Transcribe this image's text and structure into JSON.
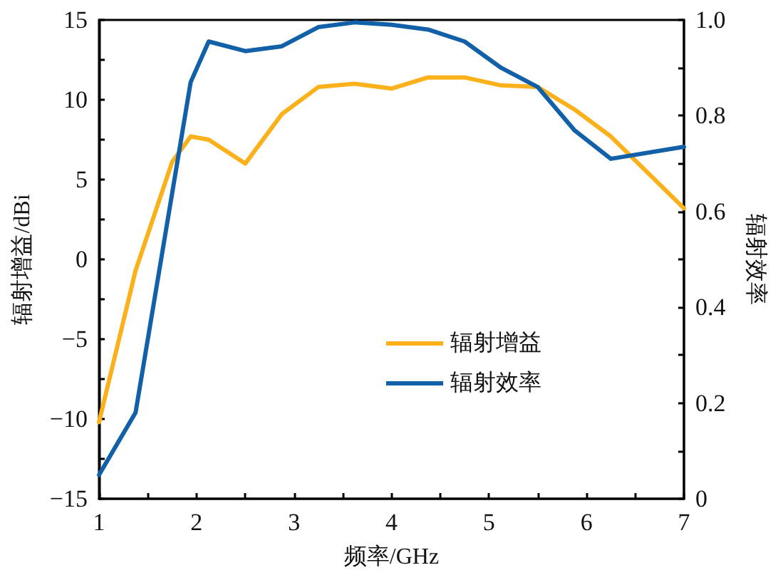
{
  "chart_data": {
    "type": "line",
    "xlabel": "频率/GHz",
    "ylabel": "辐射增益/dBi",
    "y2label": "辐射效率",
    "xlim": [
      1,
      7
    ],
    "xticks": [
      1,
      {
        "value": 1.5,
        "label": null
      },
      2,
      {
        "value": 2.5,
        "label": null
      },
      3,
      {
        "value": 3.5,
        "label": null
      },
      4,
      {
        "value": 4.5,
        "label": null
      },
      5,
      {
        "value": 5.5,
        "label": null
      },
      6,
      {
        "value": 6.5,
        "label": null
      },
      7
    ],
    "ylim": [
      -15,
      15
    ],
    "yticks": [
      {
        "value": -15,
        "label": "−15"
      },
      {
        "value": -12.5,
        "label": null
      },
      {
        "value": -10,
        "label": "−10"
      },
      {
        "value": -7.5,
        "label": null
      },
      {
        "value": -5,
        "label": "−5"
      },
      {
        "value": -2.5,
        "label": null
      },
      0,
      {
        "value": 2.5,
        "label": null
      },
      5,
      {
        "value": 7.5,
        "label": null
      },
      10,
      {
        "value": 12.5,
        "label": null
      },
      15
    ],
    "y2lim": [
      0,
      1
    ],
    "y2ticks": [
      0,
      {
        "value": 0.1,
        "label": null
      },
      0.2,
      {
        "value": 0.3,
        "label": null
      },
      0.4,
      {
        "value": 0.5,
        "label": null
      },
      0.6,
      {
        "value": 0.7,
        "label": null
      },
      0.8,
      {
        "value": 0.9,
        "label": null
      },
      {
        "value": 1,
        "label": "1.0"
      }
    ],
    "series": [
      {
        "name": "辐射增益",
        "color": "#fbb11b",
        "x": [
          1,
          1.375,
          1.75,
          1.94,
          2.125,
          2.5,
          2.875,
          3.25,
          3.625,
          4,
          4.375,
          4.75,
          5.125,
          5.5,
          5.875,
          6.25,
          7
        ],
        "values": [
          -10.2,
          -0.7,
          6.1,
          7.7,
          7.5,
          6.0,
          9.1,
          10.8,
          11.0,
          10.7,
          11.4,
          11.4,
          10.9,
          10.8,
          9.4,
          7.7,
          3.2
        ]
      },
      {
        "name": "辐射效率",
        "color": "#1261a8",
        "axis": "y2",
        "x": [
          1,
          1.375,
          1.94,
          2.125,
          2.5,
          2.875,
          3.25,
          3.625,
          4,
          4.375,
          4.75,
          5.125,
          5.5,
          5.875,
          6.25,
          7
        ],
        "values": [
          0.05,
          0.18,
          0.87,
          0.955,
          0.935,
          0.945,
          0.985,
          0.995,
          0.99,
          0.98,
          0.955,
          0.9,
          0.86,
          0.77,
          0.71,
          0.735
        ]
      }
    ],
    "legend": "bottom right",
    "marker": "none",
    "line_style": "solid"
  }
}
